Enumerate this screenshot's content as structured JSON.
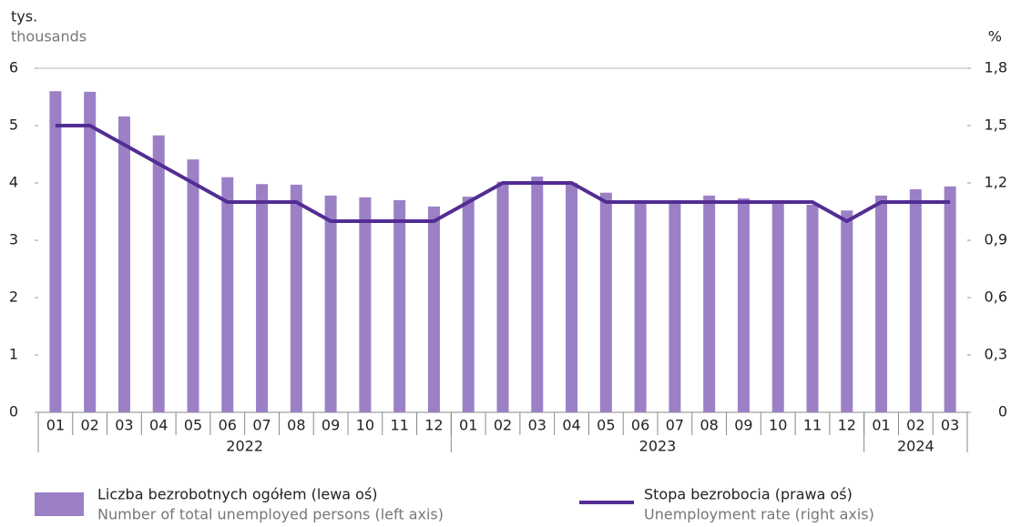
{
  "chart_data": {
    "type": "bar-line",
    "y_unit": "tys.",
    "y_unit_en": "thousands",
    "y2_unit": "%",
    "categories": [
      "01",
      "02",
      "03",
      "04",
      "05",
      "06",
      "07",
      "08",
      "09",
      "10",
      "11",
      "12",
      "01",
      "02",
      "03",
      "04",
      "05",
      "06",
      "07",
      "08",
      "09",
      "10",
      "11",
      "12",
      "01",
      "02",
      "03"
    ],
    "years": [
      {
        "label": "2022",
        "months": 12
      },
      {
        "label": "2023",
        "months": 12
      },
      {
        "label": "2024",
        "months": 3
      }
    ],
    "series": [
      {
        "name": "Liczba bezrobotnych ogółem (lewa oś)",
        "name_en": "Number of total unemployed persons (left axis)",
        "type": "bar",
        "color": "#9b80c6",
        "values": [
          5.6,
          5.59,
          5.16,
          4.83,
          4.41,
          4.1,
          3.98,
          3.97,
          3.78,
          3.75,
          3.7,
          3.59,
          3.76,
          4.02,
          4.11,
          4.0,
          3.83,
          3.7,
          3.7,
          3.78,
          3.73,
          3.7,
          3.62,
          3.52,
          3.78,
          3.89,
          3.94
        ]
      },
      {
        "name": "Stopa bezrobocia (prawa oś)",
        "name_en": "Unemployment rate (right axis)",
        "type": "line",
        "axis": "y2",
        "color": "#522d93",
        "values": [
          1.5,
          1.5,
          1.4,
          1.3,
          1.2,
          1.1,
          1.1,
          1.1,
          1.0,
          1.0,
          1.0,
          1.0,
          1.1,
          1.2,
          1.2,
          1.2,
          1.1,
          1.1,
          1.1,
          1.1,
          1.1,
          1.1,
          1.1,
          1.0,
          1.1,
          1.1,
          1.1
        ]
      }
    ],
    "ylim": [
      0,
      6
    ],
    "yticks": [
      0,
      1,
      2,
      3,
      4,
      5,
      6
    ],
    "y2lim": [
      0,
      1.8
    ],
    "y2ticks": [
      0,
      {
        "value": 0.3,
        "label": "0,3"
      },
      {
        "value": 0.6,
        "label": "0,6"
      },
      {
        "value": 0.9,
        "label": "0,9"
      },
      {
        "value": 1.2,
        "label": "1,2"
      },
      {
        "value": 1.5,
        "label": "1,5"
      },
      {
        "value": 1.8,
        "label": "1,8"
      }
    ],
    "grid": false
  }
}
